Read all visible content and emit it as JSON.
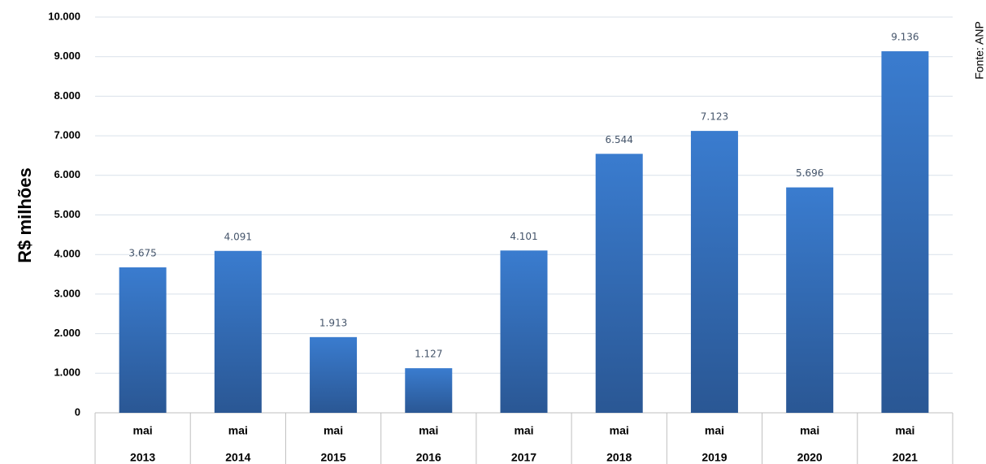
{
  "chart_data": {
    "type": "bar",
    "y_label": "R$ milhões",
    "source": "Fonte: ANP",
    "categories": [
      "mai",
      "mai",
      "mai",
      "mai",
      "mai",
      "mai",
      "mai",
      "mai",
      "mai"
    ],
    "years": [
      "2013",
      "2014",
      "2015",
      "2016",
      "2017",
      "2018",
      "2019",
      "2020",
      "2021"
    ],
    "values": [
      3675,
      4091,
      1913,
      1127,
      4101,
      6544,
      7123,
      5696,
      9136
    ],
    "value_labels": [
      "3.675",
      "4.091",
      "1.913",
      "1.127",
      "4.101",
      "6.544",
      "7.123",
      "5.696",
      "9.136"
    ],
    "color": "#3a7ccf",
    "ylim": [
      0,
      10000
    ],
    "yticks": [
      0,
      {
        "value": 1000,
        "label": "1.000"
      },
      {
        "value": 2000,
        "label": "2.000"
      },
      {
        "value": 3000,
        "label": "3.000"
      },
      {
        "value": 4000,
        "label": "4.000"
      },
      {
        "value": 5000,
        "label": "5.000"
      },
      {
        "value": 6000,
        "label": "6.000"
      },
      {
        "value": 7000,
        "label": "7.000"
      },
      {
        "value": 8000,
        "label": "8.000"
      },
      {
        "value": 9000,
        "label": "9.000"
      },
      {
        "value": 10000,
        "label": "10.000"
      }
    ],
    "grid": true
  }
}
